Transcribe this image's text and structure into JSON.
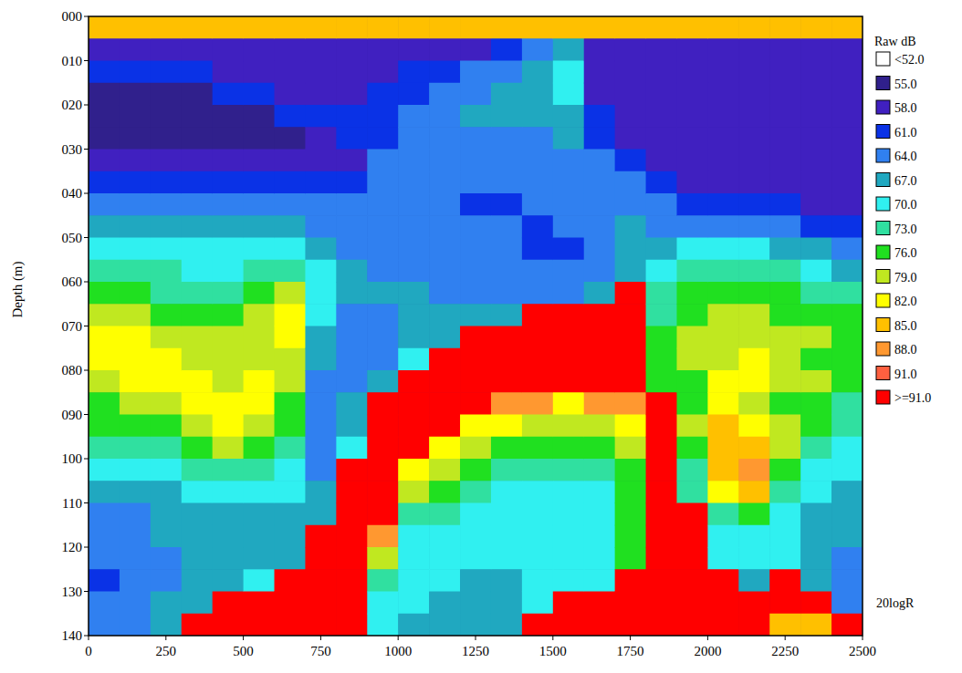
{
  "chart_data": {
    "type": "heatmap",
    "ylabel": "Depth (m)",
    "xlim": [
      0,
      2500
    ],
    "ylim": [
      140,
      0
    ],
    "xticks": [
      0,
      250,
      500,
      750,
      1000,
      1250,
      1500,
      1750,
      2000,
      2250,
      2500
    ],
    "yticks": [
      {
        "value": 0,
        "label": "000"
      },
      {
        "value": 10,
        "label": "010"
      },
      {
        "value": 20,
        "label": "020"
      },
      {
        "value": 30,
        "label": "030"
      },
      {
        "value": 40,
        "label": "040"
      },
      {
        "value": 50,
        "label": "050"
      },
      {
        "value": 60,
        "label": "060"
      },
      {
        "value": 70,
        "label": "070"
      },
      {
        "value": 80,
        "label": "080"
      },
      {
        "value": 90,
        "label": "090"
      },
      {
        "value": 100,
        "label": "100"
      },
      {
        "value": 110,
        "label": "110"
      },
      {
        "value": 120,
        "label": "120"
      },
      {
        "value": 130,
        "label": "130"
      },
      {
        "value": 140,
        "label": "140"
      }
    ],
    "grid": false,
    "x_edges": [
      0,
      100,
      200,
      300,
      400,
      500,
      600,
      700,
      800,
      900,
      1000,
      1100,
      1200,
      1300,
      1400,
      1500,
      1600,
      1700,
      1800,
      1900,
      2000,
      2100,
      2200,
      2300,
      2400,
      2500
    ],
    "y_edges": [
      0,
      5,
      10,
      15,
      20,
      25,
      30,
      35,
      40,
      45,
      50,
      55,
      60,
      65,
      70,
      75,
      80,
      85,
      90,
      95,
      100,
      105,
      110,
      115,
      120,
      125,
      130,
      135,
      140
    ],
    "values": [
      [
        85,
        58,
        61,
        56,
        56,
        56,
        58,
        61,
        64,
        67,
        70,
        73,
        76,
        79,
        82,
        82,
        79,
        76,
        76,
        73,
        70,
        67,
        64,
        64,
        64,
        61,
        64,
        64
      ],
      [
        85,
        58,
        61,
        56,
        56,
        56,
        58,
        61,
        64,
        67,
        70,
        73,
        76,
        79,
        82,
        82,
        82,
        79,
        76,
        73,
        70,
        67,
        64,
        64,
        64,
        64,
        64,
        64
      ],
      [
        85,
        58,
        61,
        56,
        56,
        56,
        58,
        61,
        64,
        67,
        70,
        73,
        73,
        76,
        79,
        82,
        82,
        79,
        76,
        73,
        70,
        67,
        67,
        67,
        64,
        64,
        67,
        67
      ],
      [
        85,
        58,
        61,
        56,
        56,
        56,
        58,
        61,
        64,
        67,
        70,
        70,
        73,
        76,
        79,
        79,
        82,
        82,
        79,
        76,
        73,
        70,
        67,
        67,
        67,
        67,
        67,
        95
      ],
      [
        85,
        58,
        58,
        61,
        56,
        56,
        58,
        61,
        64,
        67,
        70,
        70,
        73,
        76,
        79,
        79,
        79,
        82,
        82,
        79,
        73,
        70,
        67,
        67,
        67,
        67,
        95,
        95
      ],
      [
        85,
        58,
        58,
        61,
        56,
        56,
        58,
        61,
        64,
        67,
        70,
        73,
        76,
        79,
        79,
        79,
        82,
        82,
        79,
        76,
        73,
        70,
        67,
        67,
        67,
        70,
        95,
        95
      ],
      [
        85,
        58,
        58,
        58,
        61,
        56,
        58,
        61,
        64,
        67,
        70,
        73,
        79,
        82,
        82,
        79,
        79,
        76,
        76,
        73,
        70,
        70,
        67,
        67,
        67,
        95,
        95,
        95
      ],
      [
        85,
        58,
        58,
        58,
        61,
        58,
        58,
        61,
        64,
        64,
        67,
        70,
        70,
        70,
        67,
        67,
        64,
        64,
        64,
        64,
        64,
        67,
        67,
        95,
        95,
        95,
        95,
        95
      ],
      [
        85,
        58,
        58,
        58,
        61,
        61,
        58,
        61,
        64,
        64,
        64,
        67,
        67,
        64,
        64,
        64,
        64,
        67,
        67,
        70,
        95,
        95,
        95,
        95,
        95,
        95,
        95,
        95
      ],
      [
        85,
        58,
        58,
        61,
        61,
        61,
        64,
        64,
        64,
        64,
        64,
        64,
        67,
        64,
        64,
        64,
        67,
        95,
        95,
        95,
        95,
        95,
        95,
        88,
        79,
        73,
        70,
        70
      ],
      [
        85,
        58,
        61,
        61,
        64,
        64,
        64,
        64,
        64,
        64,
        64,
        64,
        67,
        67,
        67,
        70,
        95,
        95,
        95,
        95,
        82,
        79,
        73,
        70,
        70,
        70,
        70,
        67
      ],
      [
        85,
        58,
        61,
        64,
        64,
        64,
        64,
        64,
        64,
        64,
        64,
        64,
        64,
        67,
        67,
        95,
        95,
        95,
        95,
        82,
        79,
        76,
        73,
        70,
        70,
        70,
        67,
        67
      ],
      [
        85,
        58,
        64,
        64,
        67,
        64,
        64,
        64,
        61,
        64,
        64,
        64,
        64,
        67,
        95,
        95,
        95,
        95,
        82,
        79,
        76,
        73,
        70,
        70,
        70,
        67,
        67,
        67
      ],
      [
        85,
        61,
        64,
        67,
        67,
        64,
        64,
        64,
        61,
        64,
        64,
        64,
        64,
        67,
        95,
        95,
        95,
        88,
        82,
        76,
        73,
        70,
        70,
        70,
        70,
        67,
        67,
        67
      ],
      [
        85,
        64,
        67,
        67,
        67,
        64,
        64,
        64,
        64,
        61,
        61,
        64,
        64,
        95,
        95,
        95,
        95,
        88,
        79,
        76,
        73,
        70,
        70,
        70,
        70,
        70,
        70,
        95
      ],
      [
        85,
        67,
        70,
        70,
        67,
        67,
        64,
        64,
        64,
        64,
        61,
        64,
        64,
        95,
        95,
        95,
        95,
        82,
        79,
        76,
        73,
        70,
        70,
        70,
        70,
        70,
        95,
        95
      ],
      [
        85,
        58,
        58,
        58,
        61,
        61,
        64,
        64,
        64,
        64,
        64,
        64,
        67,
        95,
        95,
        95,
        95,
        88,
        79,
        76,
        73,
        70,
        70,
        70,
        70,
        70,
        95,
        95
      ],
      [
        85,
        58,
        58,
        58,
        58,
        58,
        61,
        64,
        64,
        67,
        67,
        67,
        95,
        95,
        95,
        95,
        95,
        88,
        82,
        79,
        76,
        76,
        76,
        76,
        76,
        95,
        95,
        95
      ],
      [
        85,
        58,
        58,
        58,
        58,
        58,
        58,
        61,
        64,
        64,
        67,
        70,
        73,
        73,
        76,
        76,
        76,
        95,
        95,
        95,
        95,
        95,
        95,
        95,
        95,
        95,
        95,
        95
      ],
      [
        85,
        58,
        58,
        58,
        58,
        58,
        58,
        58,
        61,
        64,
        70,
        73,
        76,
        76,
        79,
        79,
        76,
        76,
        79,
        76,
        73,
        73,
        95,
        95,
        95,
        95,
        95,
        95
      ],
      [
        85,
        58,
        58,
        58,
        58,
        58,
        58,
        58,
        61,
        64,
        70,
        73,
        76,
        79,
        79,
        79,
        82,
        82,
        85,
        85,
        85,
        82,
        73,
        70,
        70,
        95,
        95,
        95
      ],
      [
        85,
        58,
        58,
        58,
        58,
        58,
        58,
        58,
        61,
        64,
        70,
        73,
        76,
        79,
        79,
        82,
        82,
        79,
        82,
        85,
        88,
        85,
        76,
        70,
        70,
        67,
        95,
        95
      ],
      [
        85,
        58,
        58,
        58,
        58,
        58,
        58,
        58,
        61,
        64,
        67,
        73,
        76,
        76,
        79,
        79,
        79,
        76,
        79,
        79,
        76,
        73,
        70,
        70,
        70,
        95,
        95,
        85
      ],
      [
        85,
        58,
        58,
        58,
        58,
        58,
        58,
        58,
        58,
        61,
        67,
        70,
        73,
        76,
        79,
        76,
        79,
        76,
        76,
        73,
        70,
        70,
        67,
        67,
        67,
        67,
        95,
        85
      ],
      [
        85,
        58,
        58,
        58,
        58,
        58,
        58,
        58,
        58,
        61,
        64,
        67,
        73,
        76,
        76,
        76,
        76,
        73,
        73,
        70,
        70,
        67,
        67,
        67,
        64,
        64,
        64,
        95
      ]
    ],
    "colorbar": {
      "label": "Raw dB",
      "ticks": [
        {
          "value": 52,
          "label": "<52.0"
        },
        {
          "value": 55,
          "label": "55.0"
        },
        {
          "value": 58,
          "label": "58.0"
        },
        {
          "value": 61,
          "label": "61.0"
        },
        {
          "value": 64,
          "label": "64.0"
        },
        {
          "value": 67,
          "label": "67.0"
        },
        {
          "value": 70,
          "label": "70.0"
        },
        {
          "value": 73,
          "label": "73.0"
        },
        {
          "value": 76,
          "label": "76.0"
        },
        {
          "value": 79,
          "label": "79.0"
        },
        {
          "value": 82,
          "label": "82.0"
        },
        {
          "value": 85,
          "label": "85.0"
        },
        {
          "value": 88,
          "label": "88.0"
        },
        {
          "value": 91,
          "label": "91.0"
        },
        {
          "value": 91,
          "label": ">=91.0"
        }
      ],
      "colors": [
        "#ffffff",
        "#30208c",
        "#4020c0",
        "#0a32e6",
        "#3080f0",
        "#20a8c0",
        "#30f0f0",
        "#30e0a0",
        "#20e020",
        "#c0e820",
        "#ffff00",
        "#ffc000",
        "#ff9830",
        "#ff6040",
        "#ff0000"
      ]
    },
    "annotations": [
      "20logR"
    ]
  }
}
